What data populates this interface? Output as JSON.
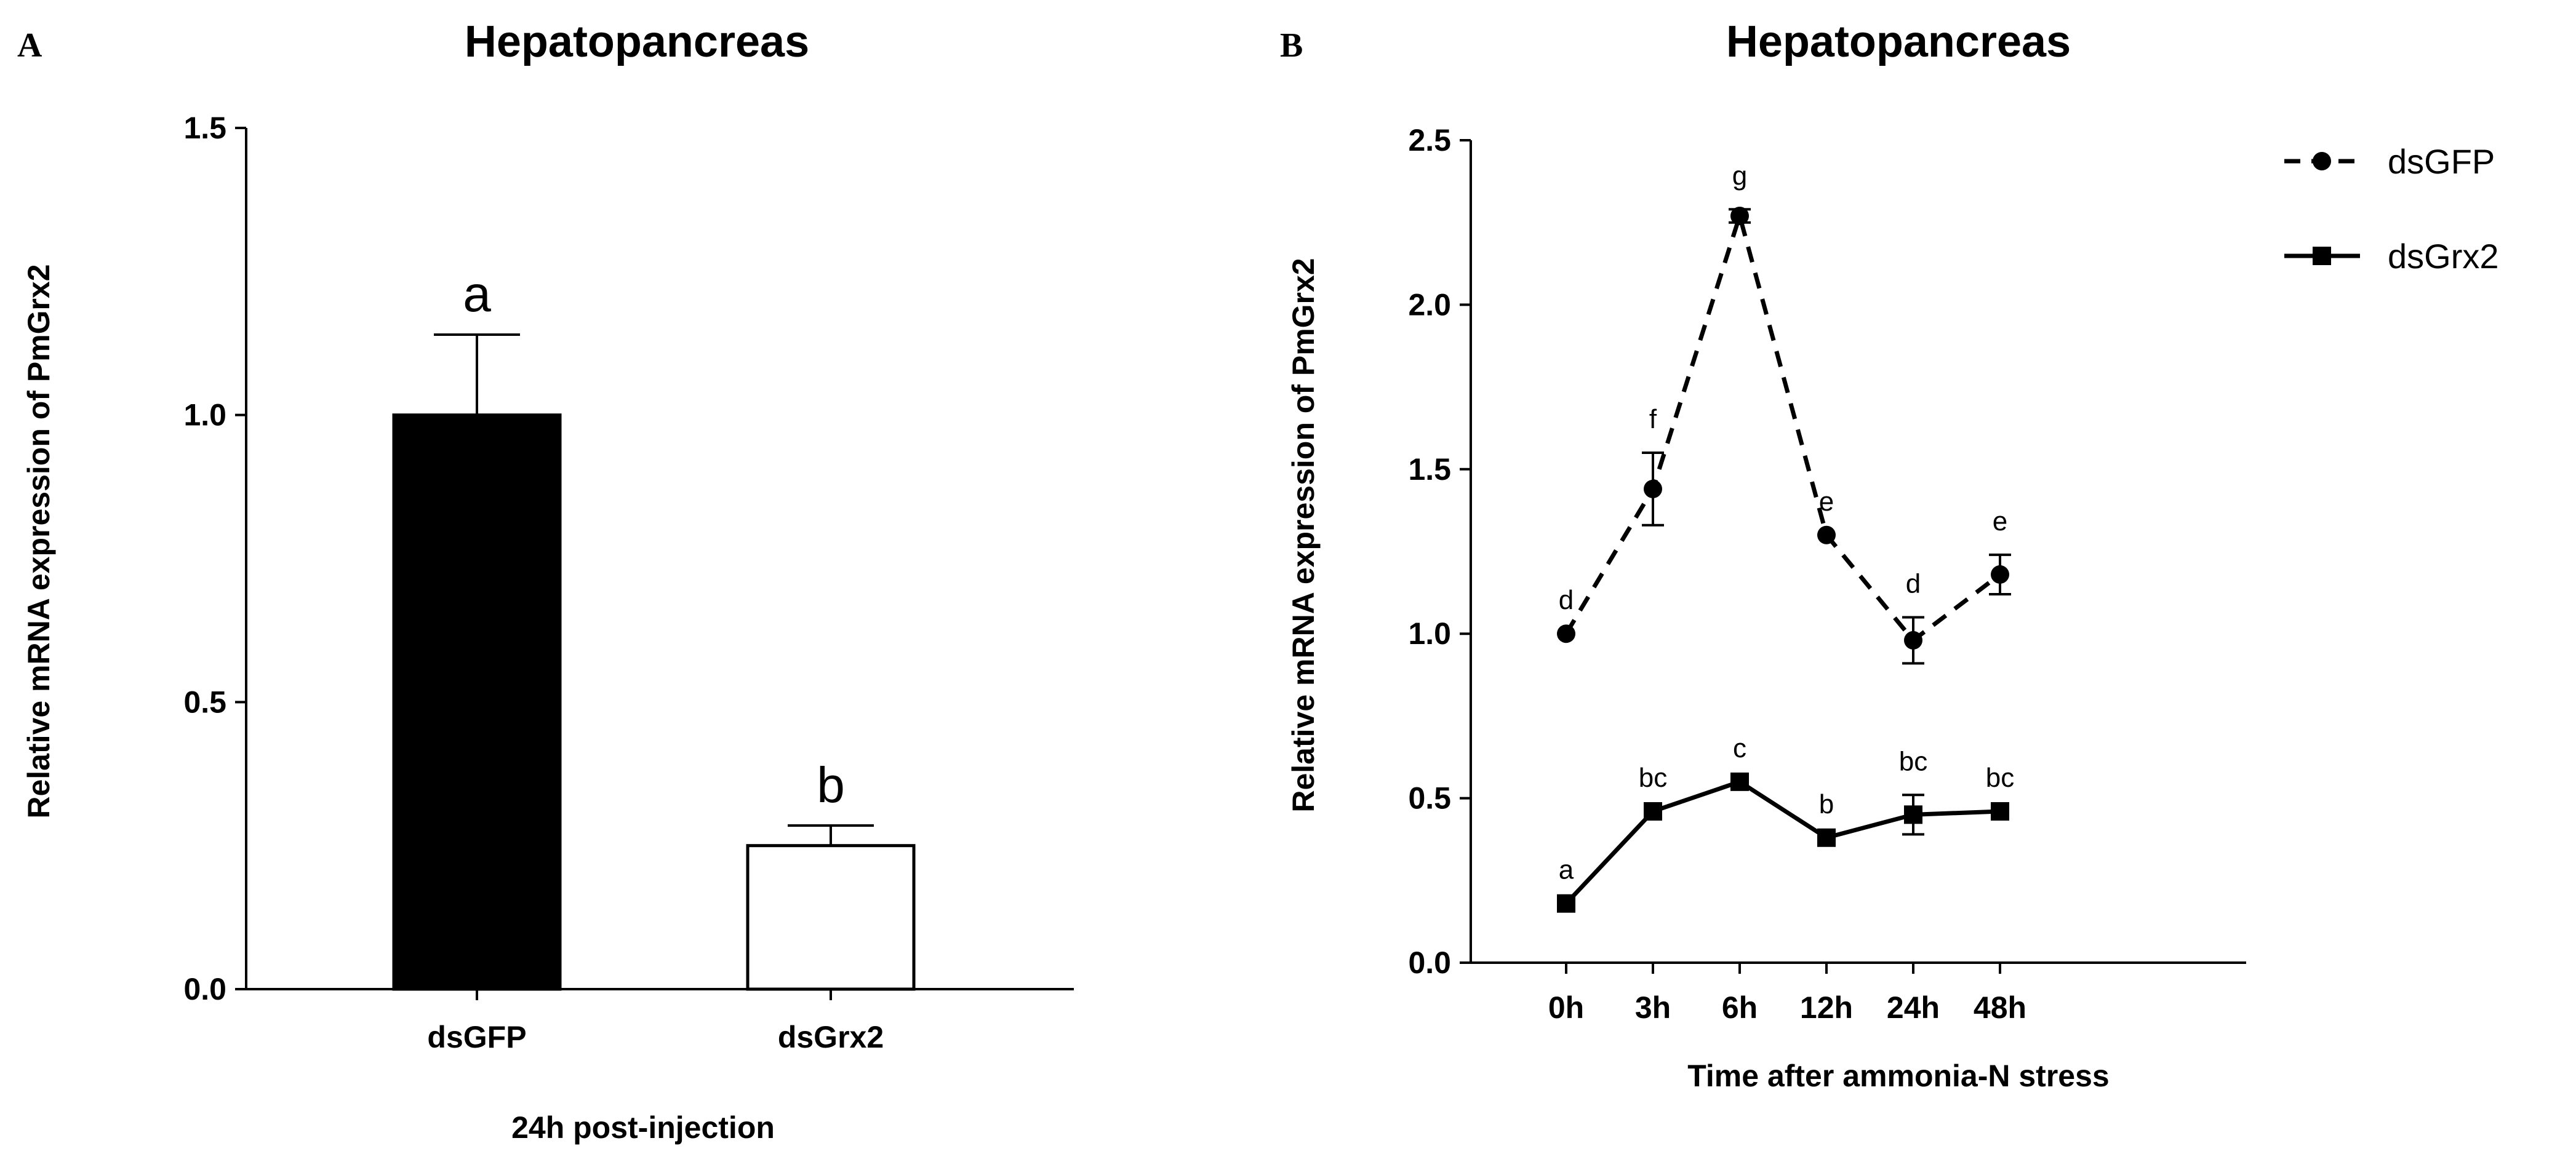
{
  "chart_data": [
    {
      "type": "bar",
      "panel_label": "A",
      "title": "Hepatopancreas",
      "xlabel": "24h post-injection",
      "ylabel": "Relative mRNA expression of PmGrx2",
      "ylim": [
        0,
        1.5
      ],
      "yticks": [
        "0.0",
        "0.5",
        "1.0",
        "1.5"
      ],
      "categories": [
        "dsGFP",
        "dsGrx2"
      ],
      "values": [
        1.0,
        0.25
      ],
      "errors": [
        0.14,
        0.035
      ],
      "significance": [
        "a",
        "b"
      ],
      "bar_colors": [
        "#000000",
        "#ffffff"
      ],
      "grid": false
    },
    {
      "type": "line",
      "panel_label": "B",
      "title": "Hepatopancreas",
      "xlabel": "Time after ammonia-N stress",
      "ylabel": "Relative mRNA expression of PmGrx2",
      "ylim": [
        0,
        2.5
      ],
      "yticks": [
        "0.0",
        "0.5",
        "1.0",
        "1.5",
        "2.0",
        "2.5"
      ],
      "categories": [
        "0h",
        "3h",
        "6h",
        "12h",
        "24h",
        "48h"
      ],
      "legend_position": "top-right",
      "grid": false,
      "series": [
        {
          "name": "dsGFP",
          "style": "dashed",
          "marker": "circle",
          "values": [
            1.0,
            1.44,
            2.27,
            1.3,
            0.98,
            1.18
          ],
          "errors": [
            0.0,
            0.11,
            0.02,
            0.0,
            0.07,
            0.06
          ],
          "significance": [
            "d",
            "f",
            "g",
            "e",
            "d",
            "e"
          ]
        },
        {
          "name": "dsGrx2",
          "style": "solid",
          "marker": "square",
          "values": [
            0.18,
            0.46,
            0.55,
            0.38,
            0.45,
            0.46
          ],
          "errors": [
            0.0,
            0.0,
            0.0,
            0.0,
            0.06,
            0.0
          ],
          "significance": [
            "a",
            "bc",
            "c",
            "b",
            "bc",
            "bc"
          ]
        }
      ]
    }
  ]
}
